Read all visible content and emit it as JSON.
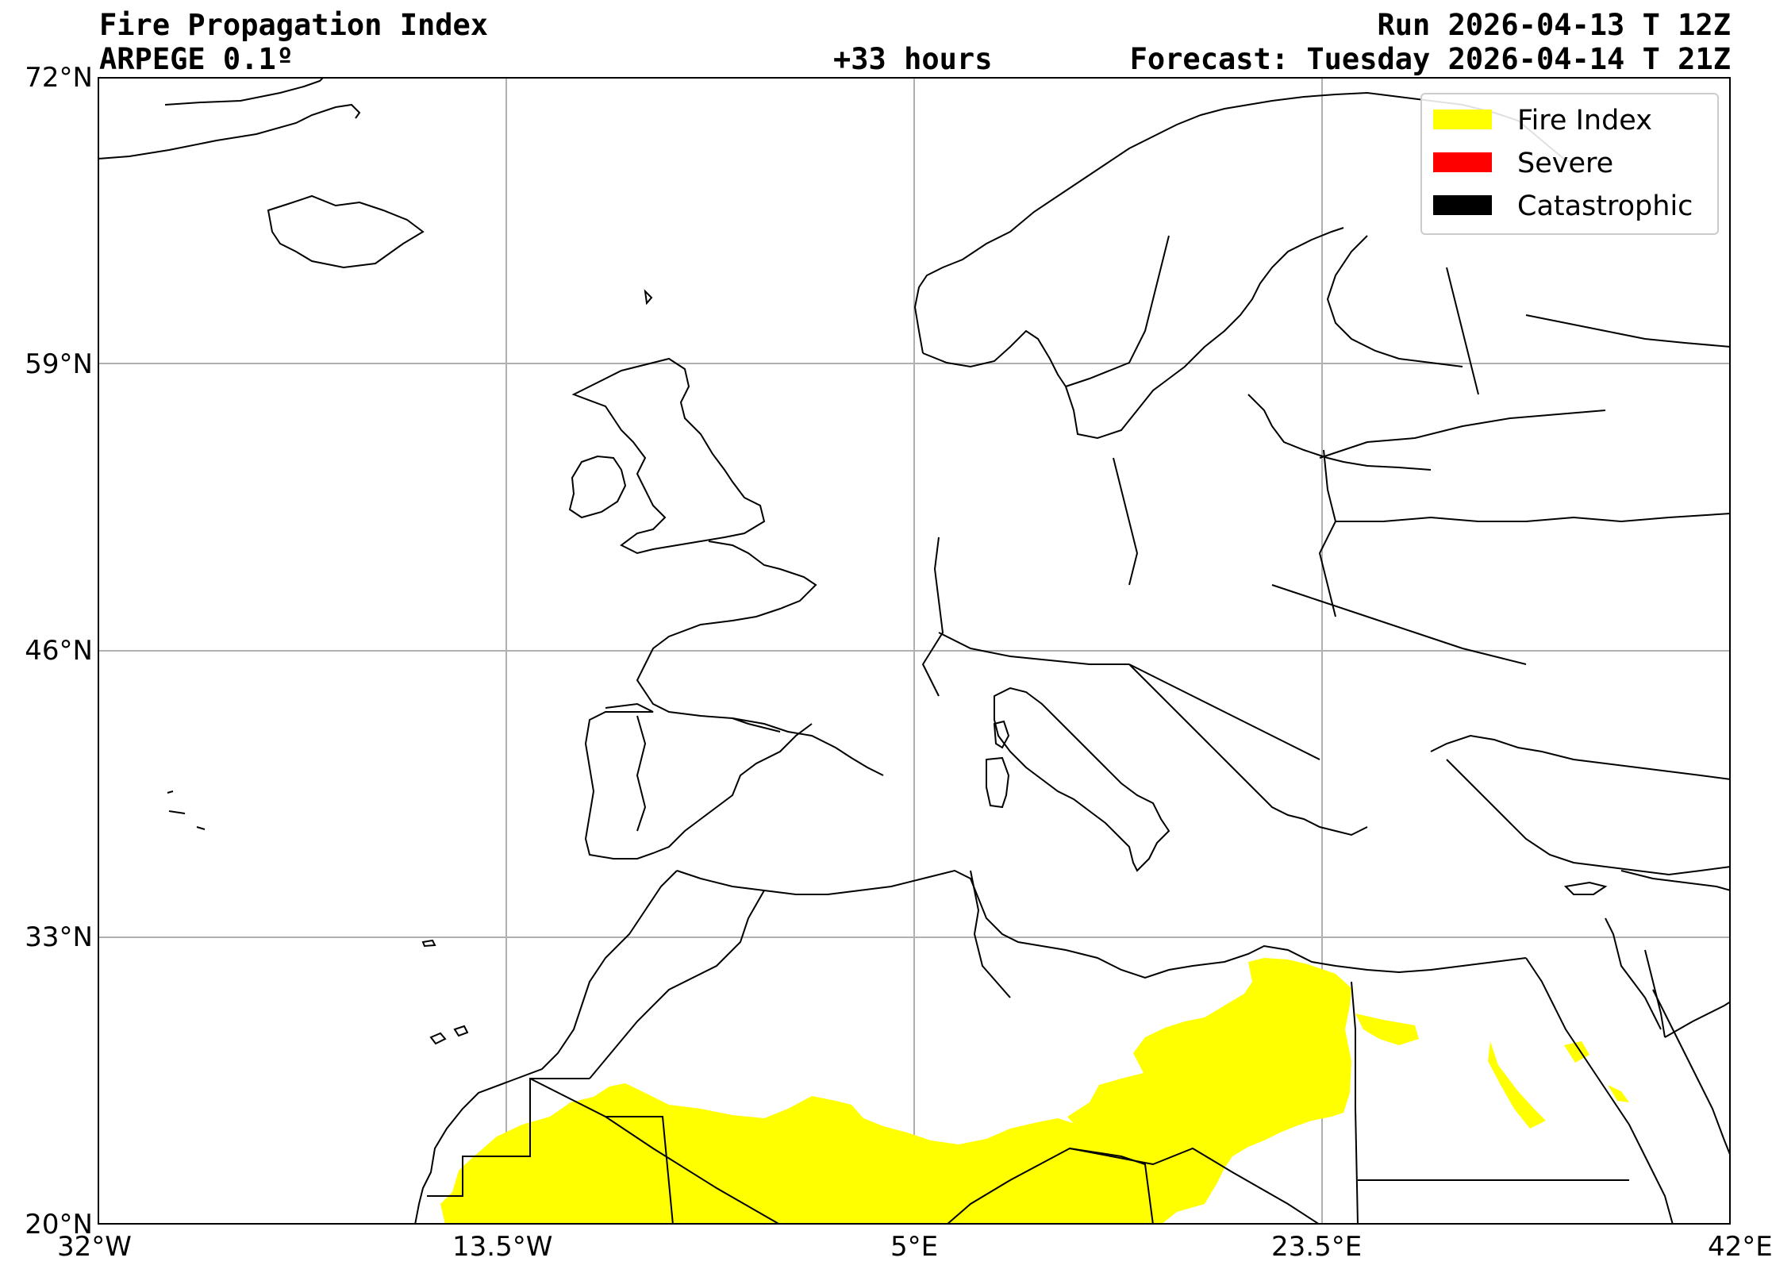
{
  "header": {
    "title": "Fire Propagation Index",
    "model": "ARPEGE 0.1º",
    "lead_time": "+33 hours",
    "run": "Run 2026-04-13 T 12Z",
    "forecast": "Forecast: Tuesday 2026-04-14 T 21Z"
  },
  "map": {
    "projection": "PlateCarree",
    "extent": {
      "lon": [
        -32,
        42
      ],
      "lat": [
        20,
        72
      ]
    },
    "gridlines": true,
    "lat_ticks": [
      {
        "value": 72,
        "label": "72°N"
      },
      {
        "value": 59,
        "label": "59°N"
      },
      {
        "value": 46,
        "label": "46°N"
      },
      {
        "value": 33,
        "label": "33°N"
      },
      {
        "value": 20,
        "label": "20°N"
      }
    ],
    "lon_ticks": [
      {
        "value": -32,
        "label": "32°W"
      },
      {
        "value": -13.5,
        "label": "13.5°W"
      },
      {
        "value": 5,
        "label": "5°E"
      },
      {
        "value": 23.5,
        "label": "23.5°E"
      },
      {
        "value": 42,
        "label": "42°E"
      }
    ]
  },
  "legend": {
    "position": "top-right",
    "items": [
      {
        "label": "Fire Index",
        "color": "#ffff00"
      },
      {
        "label": "Severe",
        "color": "#ff0000"
      },
      {
        "label": "Catastrophic",
        "color": "#000000"
      }
    ]
  }
}
